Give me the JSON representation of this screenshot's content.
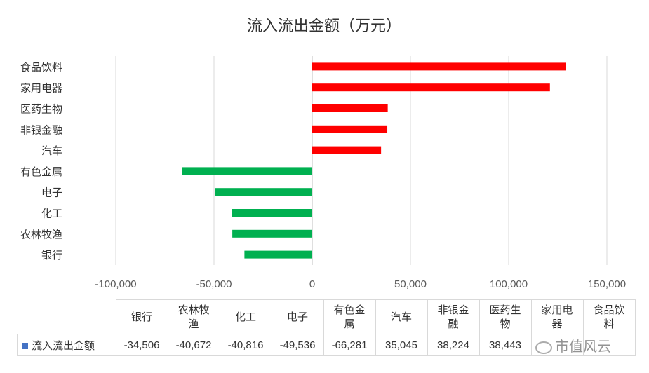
{
  "chart_data": {
    "type": "bar",
    "orientation": "horizontal",
    "title": "流入流出金额（万元）",
    "categories": [
      "食品饮料",
      "家用电器",
      "医药生物",
      "非银金融",
      "汽车",
      "有色金属",
      "电子",
      "化工",
      "农林牧渔",
      "银行"
    ],
    "series": [
      {
        "name": "流入流出金额",
        "values": [
          129000,
          121000,
          38443,
          38224,
          35045,
          -66281,
          -49536,
          -40816,
          -40672,
          -34506
        ]
      }
    ],
    "xlim": [
      -100000,
      150000
    ],
    "xticks": [
      "-100,000",
      "-50,000",
      "0",
      "50,000",
      "100,000",
      "150,000"
    ],
    "xtick_values": [
      -100000,
      -50000,
      0,
      50000,
      100000,
      150000
    ],
    "grid": true,
    "colors": {
      "positive": "#ff0000",
      "negative": "#00b050",
      "legend": "#4472c4"
    }
  },
  "data_table": {
    "headers": [
      "银行",
      "农林牧渔",
      "化工",
      "电子",
      "有色金属",
      "汽车",
      "非银金融",
      "医药生物",
      "家用电器",
      "食品饮料"
    ],
    "series_label": "流入流出金额",
    "values": [
      "-34,506",
      "-40,672",
      "-40,816",
      "-49,536",
      "-66,281",
      "35,045",
      "38,224",
      "38,443",
      "",
      ""
    ]
  },
  "watermark": "市值风云"
}
